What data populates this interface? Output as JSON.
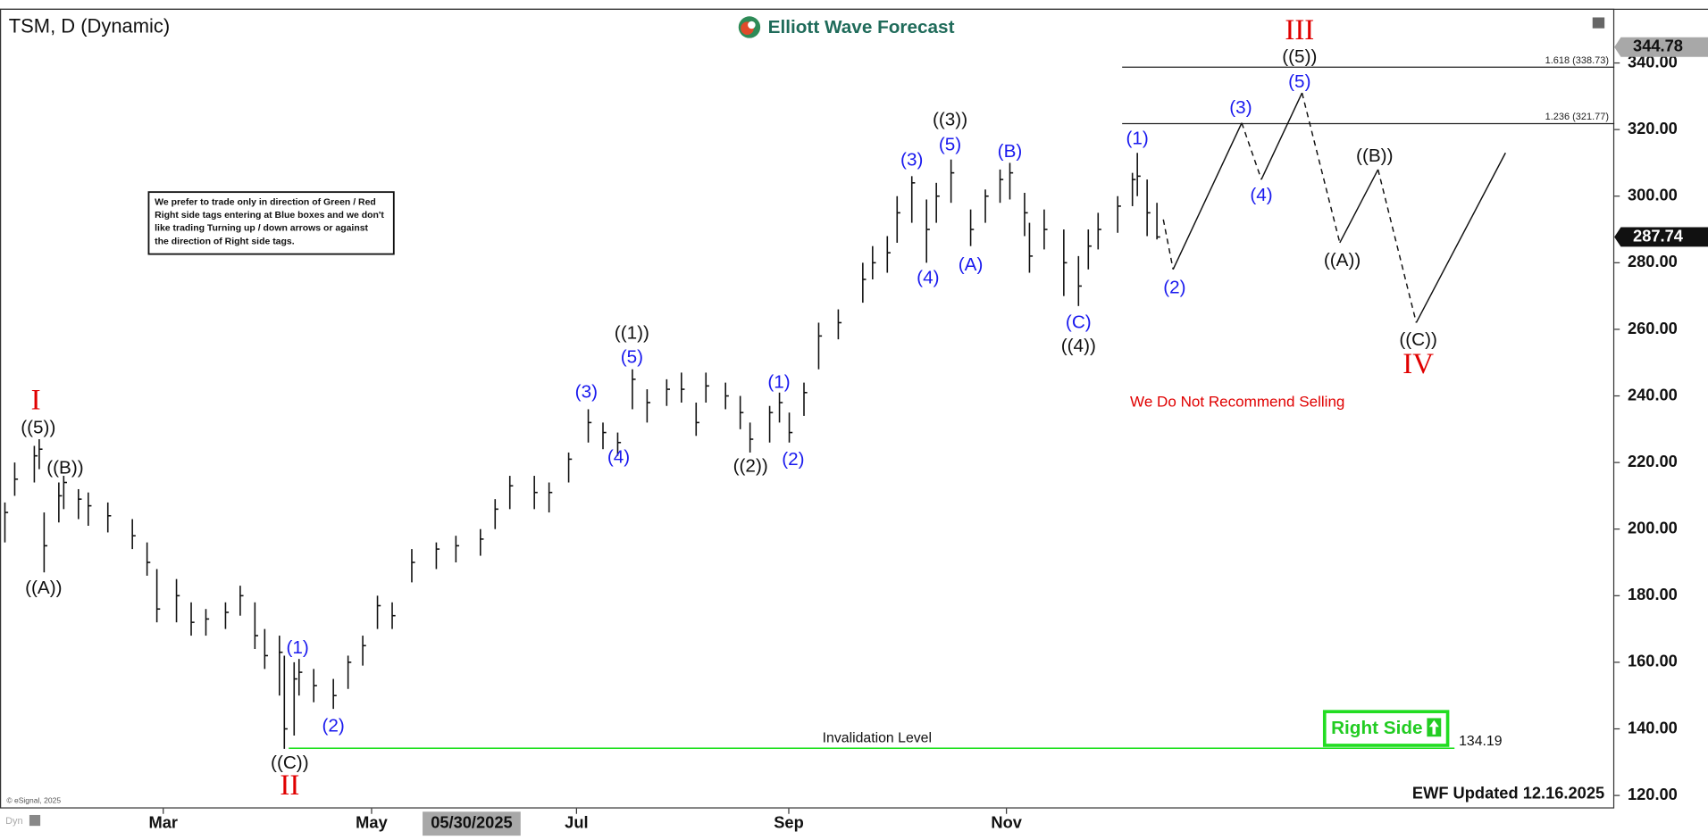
{
  "chart_data": {
    "type": "hlc",
    "title": "TSM, D (Dynamic)",
    "brand": "Elliott Wave Forecast",
    "note_lines": [
      "We prefer to trade only in direction of Green / Red",
      "Right side tags entering at Blue boxes and we don't",
      "like trading Turning up / down arrows or against",
      "the direction of Right side tags."
    ],
    "warning": "We Do Not Recommend Selling",
    "right_side": "Right Side",
    "updated": "EWF Updated 12.16.2025",
    "copyright": "© eSignal, 2025",
    "mode_label": "Dyn",
    "cursor_date": {
      "label": "05/30/2025",
      "x": 96.2
    },
    "color": "#111111",
    "xlim": [
      0,
      329.3
    ],
    "xticks": [
      {
        "value": 33.3,
        "label": "Mar"
      },
      {
        "value": 75.8,
        "label": "May"
      },
      {
        "value": 117.6,
        "label": "Jul"
      },
      {
        "value": 160.9,
        "label": "Sep"
      },
      {
        "value": 205.3,
        "label": "Nov"
      }
    ],
    "ylim": [
      116.1,
      356.3
    ],
    "yticks": [
      {
        "value": 120,
        "label": "120.00"
      },
      {
        "value": 140,
        "label": "140.00"
      },
      {
        "value": 160,
        "label": "160.00"
      },
      {
        "value": 180,
        "label": "180.00"
      },
      {
        "value": 200,
        "label": "200.00"
      },
      {
        "value": 220,
        "label": "220.00"
      },
      {
        "value": 240,
        "label": "240.00"
      },
      {
        "value": 260,
        "label": "260.00"
      },
      {
        "value": 280,
        "label": "280.00"
      },
      {
        "value": 300,
        "label": "300.00"
      },
      {
        "value": 320,
        "label": "320.00"
      },
      {
        "value": 340,
        "label": "340.00"
      }
    ],
    "x": [
      1,
      3,
      7,
      8,
      9,
      12,
      13,
      16,
      18,
      22,
      27,
      30,
      32,
      36,
      39,
      42,
      46,
      49,
      52,
      54,
      57,
      58,
      60,
      61,
      64,
      68,
      71,
      74,
      77,
      80,
      84,
      89,
      93,
      98,
      101,
      104,
      109,
      112,
      116,
      120,
      123,
      126,
      129,
      132,
      136,
      139,
      142,
      144,
      148,
      151,
      153,
      157,
      159,
      161,
      164,
      167,
      171,
      176,
      178,
      181,
      183,
      186,
      189,
      191,
      194,
      198,
      201,
      204,
      206,
      209,
      210,
      213,
      217,
      220,
      222,
      224,
      228,
      231,
      232,
      234,
      236
    ],
    "high": [
      208,
      220,
      225,
      227,
      205,
      214,
      216,
      212,
      211,
      208,
      203,
      196,
      188,
      185,
      178,
      176,
      178,
      183,
      178,
      170,
      168,
      162,
      160,
      161,
      158,
      155,
      162,
      168,
      180,
      178,
      194,
      196,
      198,
      200,
      209,
      216,
      216,
      214,
      223,
      236,
      232,
      229,
      248,
      242,
      245,
      247,
      238,
      247,
      244,
      240,
      232,
      237,
      241,
      235,
      244,
      262,
      266,
      280,
      285,
      288,
      300,
      306,
      299,
      304,
      311,
      296,
      302,
      308,
      310,
      301,
      292,
      296,
      290,
      282,
      290,
      295,
      300,
      307,
      313,
      305,
      298
    ],
    "low": [
      196,
      210,
      214,
      218,
      187,
      202,
      206,
      203,
      201,
      199,
      194,
      186,
      172,
      172,
      168,
      168,
      170,
      174,
      164,
      158,
      150,
      134,
      138,
      150,
      148,
      146,
      152,
      159,
      170,
      170,
      184,
      188,
      190,
      192,
      200,
      206,
      206,
      205,
      214,
      226,
      224,
      222,
      236,
      232,
      237,
      238,
      228,
      238,
      236,
      230,
      223,
      226,
      232,
      226,
      234,
      248,
      257,
      268,
      275,
      277,
      286,
      292,
      280,
      292,
      298,
      285,
      292,
      298,
      299,
      288,
      277,
      284,
      270,
      267,
      278,
      284,
      289,
      297,
      300,
      288,
      287
    ],
    "close": [
      205,
      215,
      222,
      224,
      195,
      210,
      214,
      209,
      207,
      204,
      198,
      190,
      176,
      180,
      172,
      173,
      175,
      180,
      168,
      162,
      163,
      140,
      155,
      157,
      153,
      150,
      160,
      165,
      177,
      174,
      190,
      194,
      195,
      197,
      206,
      213,
      211,
      211,
      221,
      232,
      229,
      226,
      245,
      238,
      242,
      242,
      232,
      243,
      240,
      235,
      227,
      235,
      238,
      229,
      241,
      258,
      262,
      275,
      280,
      283,
      295,
      304,
      290,
      300,
      307,
      290,
      300,
      305,
      307,
      295,
      282,
      290,
      280,
      273,
      285,
      290,
      297,
      305,
      306,
      295,
      287.74
    ],
    "last_price": 287.74,
    "high_tag": 344.78,
    "projection": {
      "x": [
        237.3,
        239.3,
        253.3,
        257.3,
        265.6,
        273.3,
        281.1,
        288.9,
        307.1
      ],
      "y": [
        293,
        278,
        322,
        305,
        331,
        286,
        308,
        262,
        313
      ],
      "dashed": [
        true,
        false,
        true,
        false,
        true,
        false,
        true,
        false
      ]
    },
    "levels": [
      {
        "value": 338.73,
        "label": "1.618 (338.73)",
        "x_start": 228.9
      },
      {
        "value": 321.77,
        "label": "1.236 (321.77)",
        "x_start": 228.9
      }
    ],
    "invalidation": {
      "value": 134.19,
      "text": "Invalidation Level",
      "x_start": 58.9,
      "x_end": 296.7,
      "color": "#00dd00"
    },
    "annotations": [
      {
        "text": "I",
        "x": 7.3,
        "y": 238.0,
        "color": "#e00000"
      },
      {
        "text": "((5))",
        "x": 7.8,
        "y": 230.2,
        "color": "#111111"
      },
      {
        "text": "((B))",
        "x": 13.3,
        "y": 218.1,
        "color": "#111111"
      },
      {
        "text": "((A))",
        "x": 8.9,
        "y": 182.1,
        "color": "#111111"
      },
      {
        "text": "(1)",
        "x": 60.7,
        "y": 164.1,
        "color": "#1a1aee"
      },
      {
        "text": "(2)",
        "x": 68.0,
        "y": 140.6,
        "color": "#1a1aee"
      },
      {
        "text": "((C))",
        "x": 59.1,
        "y": 129.5,
        "color": "#111111"
      },
      {
        "text": "II",
        "x": 59.1,
        "y": 122.3,
        "color": "#e00000"
      },
      {
        "text": "(3)",
        "x": 119.6,
        "y": 241.0,
        "color": "#1a1aee"
      },
      {
        "text": "(4)",
        "x": 126.2,
        "y": 221.3,
        "color": "#1a1aee"
      },
      {
        "text": "(5)",
        "x": 128.9,
        "y": 251.4,
        "color": "#1a1aee"
      },
      {
        "text": "((1))",
        "x": 128.9,
        "y": 258.6,
        "color": "#111111"
      },
      {
        "text": "((2))",
        "x": 153.1,
        "y": 218.7,
        "color": "#111111"
      },
      {
        "text": "(1)",
        "x": 158.9,
        "y": 243.9,
        "color": "#1a1aee"
      },
      {
        "text": "(2)",
        "x": 161.8,
        "y": 220.7,
        "color": "#1a1aee"
      },
      {
        "text": "(3)",
        "x": 186.0,
        "y": 310.6,
        "color": "#1a1aee"
      },
      {
        "text": "(4)",
        "x": 189.3,
        "y": 275.3,
        "color": "#1a1aee"
      },
      {
        "text": "((3))",
        "x": 193.8,
        "y": 322.7,
        "color": "#111111"
      },
      {
        "text": "(5)",
        "x": 193.8,
        "y": 315.2,
        "color": "#1a1aee"
      },
      {
        "text": "(A)",
        "x": 198.0,
        "y": 279.2,
        "color": "#1a1aee"
      },
      {
        "text": "(B)",
        "x": 206.0,
        "y": 313.2,
        "color": "#1a1aee"
      },
      {
        "text": "(C)",
        "x": 220.0,
        "y": 261.9,
        "color": "#1a1aee"
      },
      {
        "text": "((4))",
        "x": 220.0,
        "y": 254.7,
        "color": "#111111"
      },
      {
        "text": "(1)",
        "x": 232.0,
        "y": 317.1,
        "color": "#1a1aee"
      },
      {
        "text": "(2)",
        "x": 239.6,
        "y": 272.3,
        "color": "#1a1aee"
      },
      {
        "text": "(3)",
        "x": 253.1,
        "y": 326.3,
        "color": "#1a1aee"
      },
      {
        "text": "(4)",
        "x": 257.3,
        "y": 300.1,
        "color": "#1a1aee"
      },
      {
        "text": "(5)",
        "x": 265.1,
        "y": 334.1,
        "color": "#1a1aee"
      },
      {
        "text": "((5))",
        "x": 265.1,
        "y": 341.6,
        "color": "#111111"
      },
      {
        "text": "III",
        "x": 265.1,
        "y": 349.2,
        "color": "#e00000"
      },
      {
        "text": "((A))",
        "x": 273.8,
        "y": 280.5,
        "color": "#111111"
      },
      {
        "text": "((B))",
        "x": 280.4,
        "y": 311.9,
        "color": "#111111"
      },
      {
        "text": "((C))",
        "x": 289.3,
        "y": 256.6,
        "color": "#111111"
      },
      {
        "text": "IV",
        "x": 289.3,
        "y": 248.8,
        "color": "#e00000"
      }
    ]
  }
}
